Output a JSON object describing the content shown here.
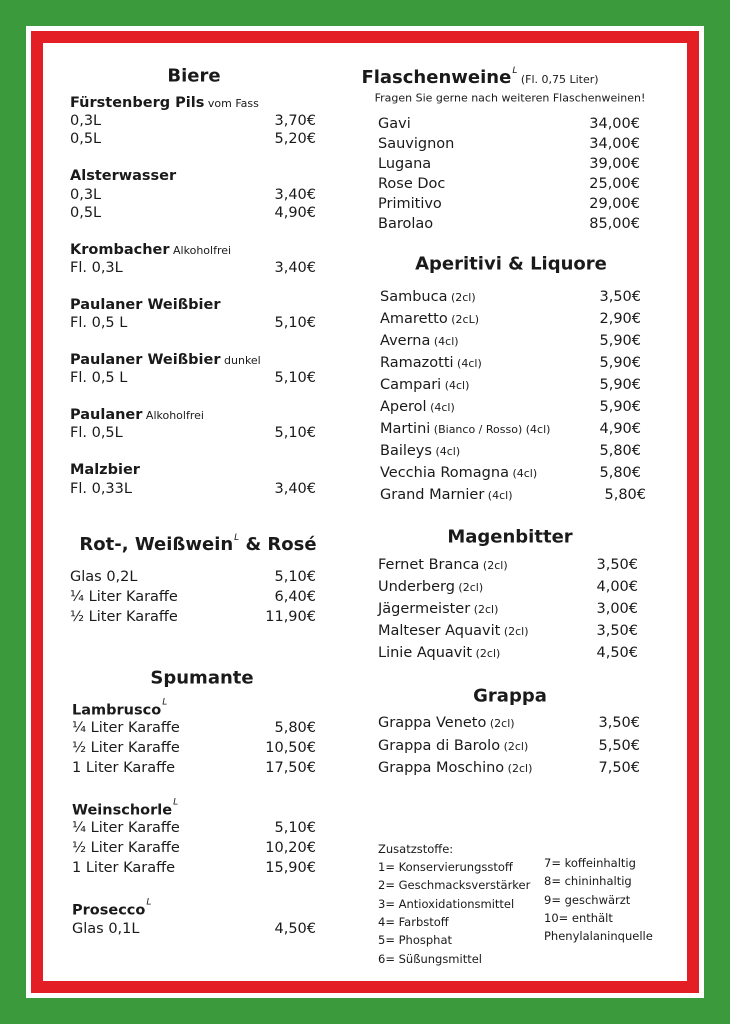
{
  "colors": {
    "green": "#3a9a3c",
    "red": "#e31e24",
    "white": "#ffffff"
  },
  "left": {
    "biere": {
      "title": "Biere",
      "groups": [
        {
          "name": "Fürstenberg Pils",
          "note": "vom Fass",
          "rows": [
            [
              "0,3L",
              "3,70€"
            ],
            [
              "0,5L",
              "5,20€"
            ]
          ]
        },
        {
          "name": "Alsterwasser",
          "note": "",
          "rows": [
            [
              "0,3L",
              "3,40€"
            ],
            [
              "0,5L",
              "4,90€"
            ]
          ]
        },
        {
          "name": "Krombacher",
          "note": "Alkoholfrei",
          "rows": [
            [
              "Fl. 0,3L",
              "3,40€"
            ]
          ]
        },
        {
          "name": "Paulaner Weißbier",
          "note": "",
          "rows": [
            [
              "Fl. 0,5 L",
              "5,10€"
            ]
          ]
        },
        {
          "name": "Paulaner Weißbier",
          "note": "dunkel",
          "rows": [
            [
              "Fl. 0,5 L",
              "5,10€"
            ]
          ]
        },
        {
          "name": "Paulaner",
          "note": "Alkoholfrei",
          "rows": [
            [
              "Fl. 0,5L",
              "5,10€"
            ]
          ]
        },
        {
          "name": "Malzbier",
          "note": "",
          "rows": [
            [
              "Fl. 0,33L",
              "3,40€"
            ]
          ]
        }
      ]
    },
    "wein": {
      "title_a": "Rot-, Weißwein",
      "title_sup": "L",
      "title_b": " & Rosé",
      "rows": [
        [
          "Glas 0,2L",
          "5,10€"
        ],
        [
          "¼ Liter Karaffe",
          "6,40€"
        ],
        [
          "½ Liter Karaffe",
          "11,90€"
        ]
      ]
    },
    "spumante": {
      "title": "Spumante",
      "groups": [
        {
          "name": "Lambrusco",
          "sup": "L",
          "rows": [
            [
              "¼ Liter Karaffe",
              "5,80€"
            ],
            [
              "½ Liter Karaffe",
              "10,50€"
            ],
            [
              "1 Liter Karaffe",
              "17,50€"
            ]
          ]
        },
        {
          "name": "Weinschorle",
          "sup": "L",
          "rows": [
            [
              "¼ Liter Karaffe",
              "5,10€"
            ],
            [
              "½ Liter Karaffe",
              "10,20€"
            ],
            [
              "1 Liter Karaffe",
              "15,90€"
            ]
          ]
        },
        {
          "name": "Prosecco",
          "sup": "L",
          "rows": [
            [
              "Glas 0,1L",
              "4,50€"
            ]
          ]
        }
      ]
    }
  },
  "right": {
    "flaschenweine": {
      "title": "Flaschenweine",
      "sup": "L",
      "note": "(Fl. 0,75 Liter)",
      "subtitle": "Fragen Sie gerne nach weiteren Flaschenweinen!",
      "rows": [
        [
          "Gavi",
          "",
          "34,00€"
        ],
        [
          "Sauvignon",
          "",
          "34,00€"
        ],
        [
          "Lugana",
          "",
          "39,00€"
        ],
        [
          "Rose Doc",
          "",
          "25,00€"
        ],
        [
          "Primitivo",
          "",
          "29,00€"
        ],
        [
          "Barolao",
          "",
          "85,00€"
        ]
      ]
    },
    "aperitivi": {
      "title": "Aperitivi & Liquore",
      "rows": [
        [
          "Sambuca",
          "(2cl)",
          "3,50€"
        ],
        [
          "Amaretto",
          "(2cL)",
          "2,90€"
        ],
        [
          "Averna",
          "(4cl)",
          "5,90€"
        ],
        [
          "Ramazotti",
          "(4cl)",
          "5,90€"
        ],
        [
          "Campari",
          "(4cl)",
          "5,90€"
        ],
        [
          "Aperol",
          "(4cl)",
          "5,90€"
        ],
        [
          "Martini",
          "(Bianco / Rosso) (4cl)",
          "4,90€"
        ],
        [
          "Baileys",
          "(4cl)",
          "5,80€"
        ],
        [
          "Vecchia Romagna",
          "(4cl)",
          "5,80€"
        ],
        [
          "Grand Marnier",
          "(4cl)",
          "5,80€"
        ]
      ]
    },
    "magenbitter": {
      "title": "Magenbitter",
      "rows": [
        [
          "Fernet Branca",
          "(2cl)",
          "3,50€"
        ],
        [
          "Underberg",
          "(2cl)",
          "4,00€"
        ],
        [
          "Jägermeister",
          "(2cl)",
          "3,00€"
        ],
        [
          "Malteser Aquavit",
          "(2cl)",
          "3,50€"
        ],
        [
          "Linie Aquavit",
          "(2cl)",
          "4,50€"
        ]
      ]
    },
    "grappa": {
      "title": "Grappa",
      "rows": [
        [
          "Grappa Veneto",
          "(2cl)",
          "3,50€"
        ],
        [
          "Grappa di Barolo",
          "(2cl)",
          "5,50€"
        ],
        [
          "Grappa Moschino",
          "(2cl)",
          "7,50€"
        ]
      ]
    },
    "zusatzstoffe": {
      "title": "Zusatzstoffe:",
      "col1": [
        "1= Konservierungsstoff",
        "2= Geschmacksverstärker",
        "3= Antioxidationsmittel",
        "4= Farbstoff",
        "5= Phosphat",
        "6= Süßungsmittel"
      ],
      "col2": [
        "7= koffeinhaltig",
        "8= chininhaltig",
        "9= geschwärzt",
        "10= enthält",
        "Phenylalaninquelle"
      ]
    }
  }
}
